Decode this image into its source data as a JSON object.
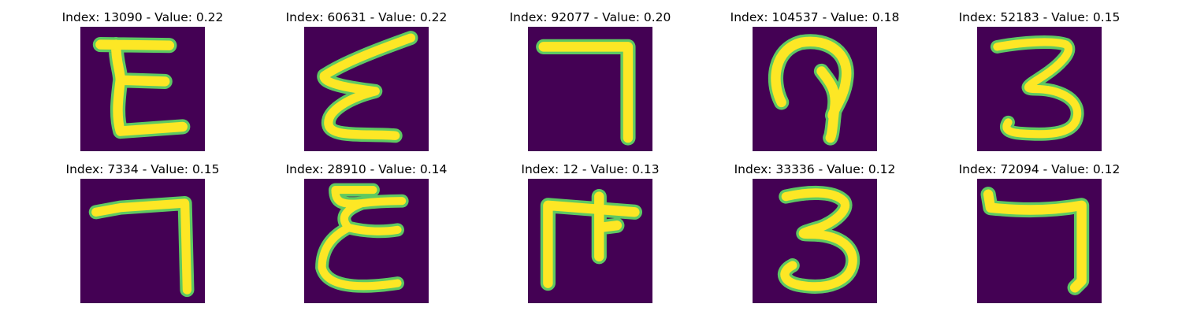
{
  "colormap": {
    "background": "#440154",
    "edge_teal": "#21918c",
    "edge_green": "#5ec962",
    "stroke": "#fde725"
  },
  "panels": [
    {
      "title": "Index: 13090 - Value: 0.22",
      "glyph": "E"
    },
    {
      "title": "Index: 60631 - Value: 0.22",
      "glyph": "epsilon"
    },
    {
      "title": "Index: 92077 - Value: 0.20",
      "glyph": "seven-hook"
    },
    {
      "title": "Index: 104537 - Value: 0.18",
      "glyph": "loop"
    },
    {
      "title": "Index: 52183 - Value: 0.15",
      "glyph": "three"
    },
    {
      "title": "Index: 7334 - Value: 0.15",
      "glyph": "seven-hook"
    },
    {
      "title": "Index: 28910 - Value: 0.14",
      "glyph": "epsilon"
    },
    {
      "title": "Index: 12 - Value: 0.13",
      "glyph": "F-arrow"
    },
    {
      "title": "Index: 33336 - Value: 0.12",
      "glyph": "three"
    },
    {
      "title": "Index: 72094 - Value: 0.12",
      "glyph": "seven-hook"
    }
  ]
}
